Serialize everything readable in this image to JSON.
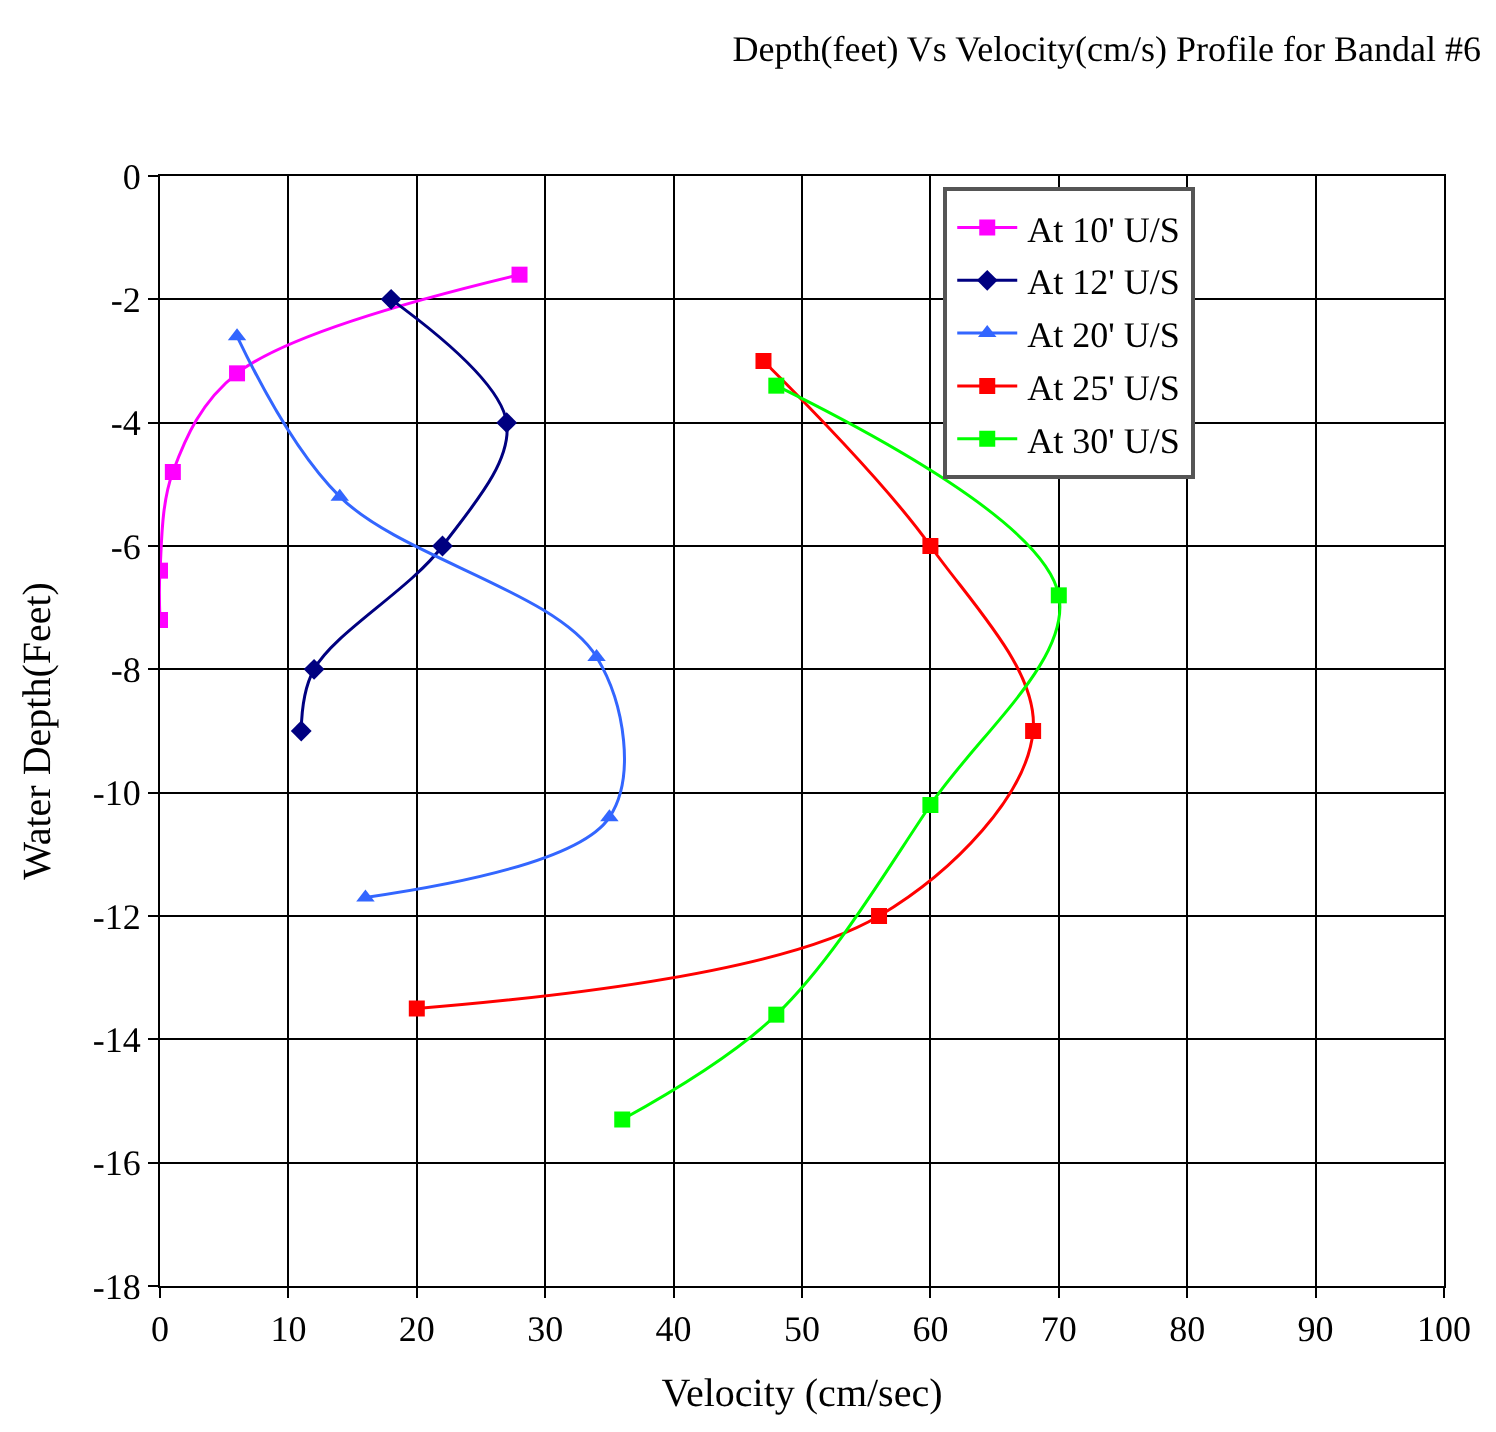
{
  "chart_data": {
    "type": "line",
    "title": "Depth(feet) Vs Velocity(cm/s) Profile for Bandal #6",
    "xlabel": "Velocity (cm/sec)",
    "ylabel": "Water Depth(Feet)",
    "xlim": [
      0,
      100
    ],
    "xticks": [
      0,
      10,
      20,
      30,
      40,
      50,
      60,
      70,
      80,
      90,
      100
    ],
    "ylim": [
      -18,
      0
    ],
    "yticks": [
      -18,
      -16,
      -14,
      -12,
      -10,
      -8,
      -6,
      -4,
      -2,
      0
    ],
    "grid": true,
    "legend": "top right",
    "line_style": "solid",
    "series": [
      {
        "name": "At 10' U/S",
        "color": "#ff00ff",
        "marker": "square",
        "x": [
          28,
          6,
          1,
          0,
          0
        ],
        "values": [
          -1.6,
          -3.2,
          -4.8,
          -6.4,
          -7.2
        ]
      },
      {
        "name": "At 12' U/S",
        "color": "#000080",
        "marker": "diamond",
        "x": [
          18,
          27,
          22,
          12,
          11
        ],
        "values": [
          -2,
          -4,
          -6,
          -8,
          -9
        ]
      },
      {
        "name": "At 20' U/S",
        "color": "#3366ff",
        "marker": "triangle",
        "x": [
          6,
          14,
          34,
          35,
          16
        ],
        "values": [
          -2.6,
          -5.2,
          -7.8,
          -10.4,
          -11.7
        ]
      },
      {
        "name": "At 25' U/S",
        "color": "#ff0000",
        "marker": "square",
        "x": [
          47,
          60,
          68,
          56,
          20
        ],
        "values": [
          -3,
          -6,
          -9,
          -12,
          -13.5
        ]
      },
      {
        "name": "At 30' U/S",
        "color": "#00ff00",
        "marker": "square",
        "x": [
          48,
          70,
          60,
          48,
          36
        ],
        "values": [
          -3.4,
          -6.8,
          -10.2,
          -13.6,
          -15.3
        ]
      }
    ]
  }
}
